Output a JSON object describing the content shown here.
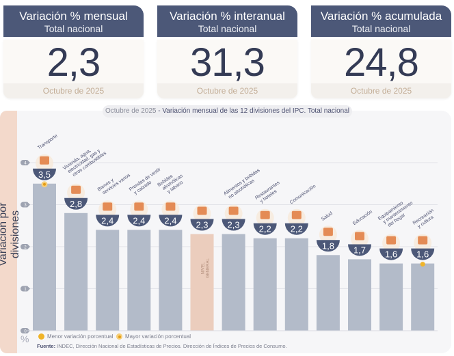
{
  "cards": [
    {
      "title": "Variación % mensual",
      "subtitle": "Total nacional",
      "value": "2,3",
      "period": "Octubre de 2025"
    },
    {
      "title": "Variación % interanual",
      "subtitle": "Total nacional",
      "value": "31,3",
      "period": "Octubre de 2025"
    },
    {
      "title": "Variación % acumulada",
      "subtitle": "Total nacional",
      "value": "24,8",
      "period": "Octubre de 2025"
    }
  ],
  "chart_header": {
    "period": "Octubre de 2025",
    "separator": " - ",
    "title": "Variación mensual de las 12 divisiones del IPC. Total nacional"
  },
  "side_label": "Variación por divisiones",
  "unit_label": "%",
  "legend": {
    "min": "Menor variación porcentual",
    "max": "Mayor variación porcentual"
  },
  "source": {
    "label": "Fuente:",
    "text": " INDEC, Dirección Nacional de Estadísticas de Precios. Dirección de Índices de Precios de Consumo."
  },
  "colors": {
    "bar": "#b3bbc9",
    "general_bar": "#ebcdbd",
    "badge": "#4c5878",
    "card_header": "#4c5878",
    "marker": "#f0b429"
  },
  "chart_data": {
    "type": "bar",
    "title": "Octubre de 2025 - Variación mensual de las 12 divisiones del IPC. Total nacional",
    "xlabel": "",
    "ylabel": "Variación por divisiones",
    "yunit": "%",
    "ylim": [
      0,
      4
    ],
    "yticks": [
      "0",
      "1",
      "2",
      "3",
      "4"
    ],
    "grid": true,
    "categories": [
      "Transporte",
      "Vivienda, agua, electricidad, gas y otros combustibles",
      "Bienes y servicios varios",
      "Prendas de vestir y calzado",
      "Bebidas alcohólicas y tabaco",
      "Nivel general",
      "Alimentos y bebidas no alcohólicas",
      "Restaurantes y hoteles",
      "Comunicación",
      "Salud",
      "Educación",
      "Equipamiento y mantenimiento del hogar",
      "Recreación y cultura"
    ],
    "category_lines": [
      [
        "Transporte"
      ],
      [
        "Vivienda, agua,",
        "electricidad, gas y",
        "otros combustibles"
      ],
      [
        "Bienes y",
        "servicios varios"
      ],
      [
        "Prendas de vestir",
        "y calzado"
      ],
      [
        "Bebidas",
        "alcohólicas",
        "y tabaco"
      ],
      [],
      [
        "Alimentos y bebidas",
        "no alcohólicas"
      ],
      [
        "Restaurantes",
        "y hoteles"
      ],
      [
        "Comunicación"
      ],
      [
        "Salud"
      ],
      [
        "Educación"
      ],
      [
        "Equipamiento",
        "y mantenimiento",
        "del hogar"
      ],
      [
        "Recreación",
        "y cultura"
      ]
    ],
    "values": [
      3.5,
      2.8,
      2.4,
      2.4,
      2.4,
      2.3,
      2.3,
      2.2,
      2.2,
      1.8,
      1.7,
      1.6,
      1.6
    ],
    "value_labels": [
      "3,5",
      "2,8",
      "2,4",
      "2,4",
      "2,4",
      "2,3",
      "2,3",
      "2,2",
      "2,2",
      "1,8",
      "1,7",
      "1,6",
      "1,6"
    ],
    "icons": [
      "car-icon",
      "lightbulb-icon",
      "comb-scissors-icon",
      "clothes-icon",
      "bottle-glass-icon",
      "shopping-basket-icon",
      "chicken-icon",
      "plate-cutlery-icon",
      "phone-icon",
      "first-aid-icon",
      "notebook-icon",
      "appliance-icon",
      "umbrella-sun-icon"
    ],
    "general_label": [
      "NIVEL",
      "GENERAL"
    ],
    "general_index": 5,
    "max_index": 0,
    "min_index": 12,
    "legend": [
      "Menor variación porcentual",
      "Mayor variación porcentual"
    ]
  }
}
